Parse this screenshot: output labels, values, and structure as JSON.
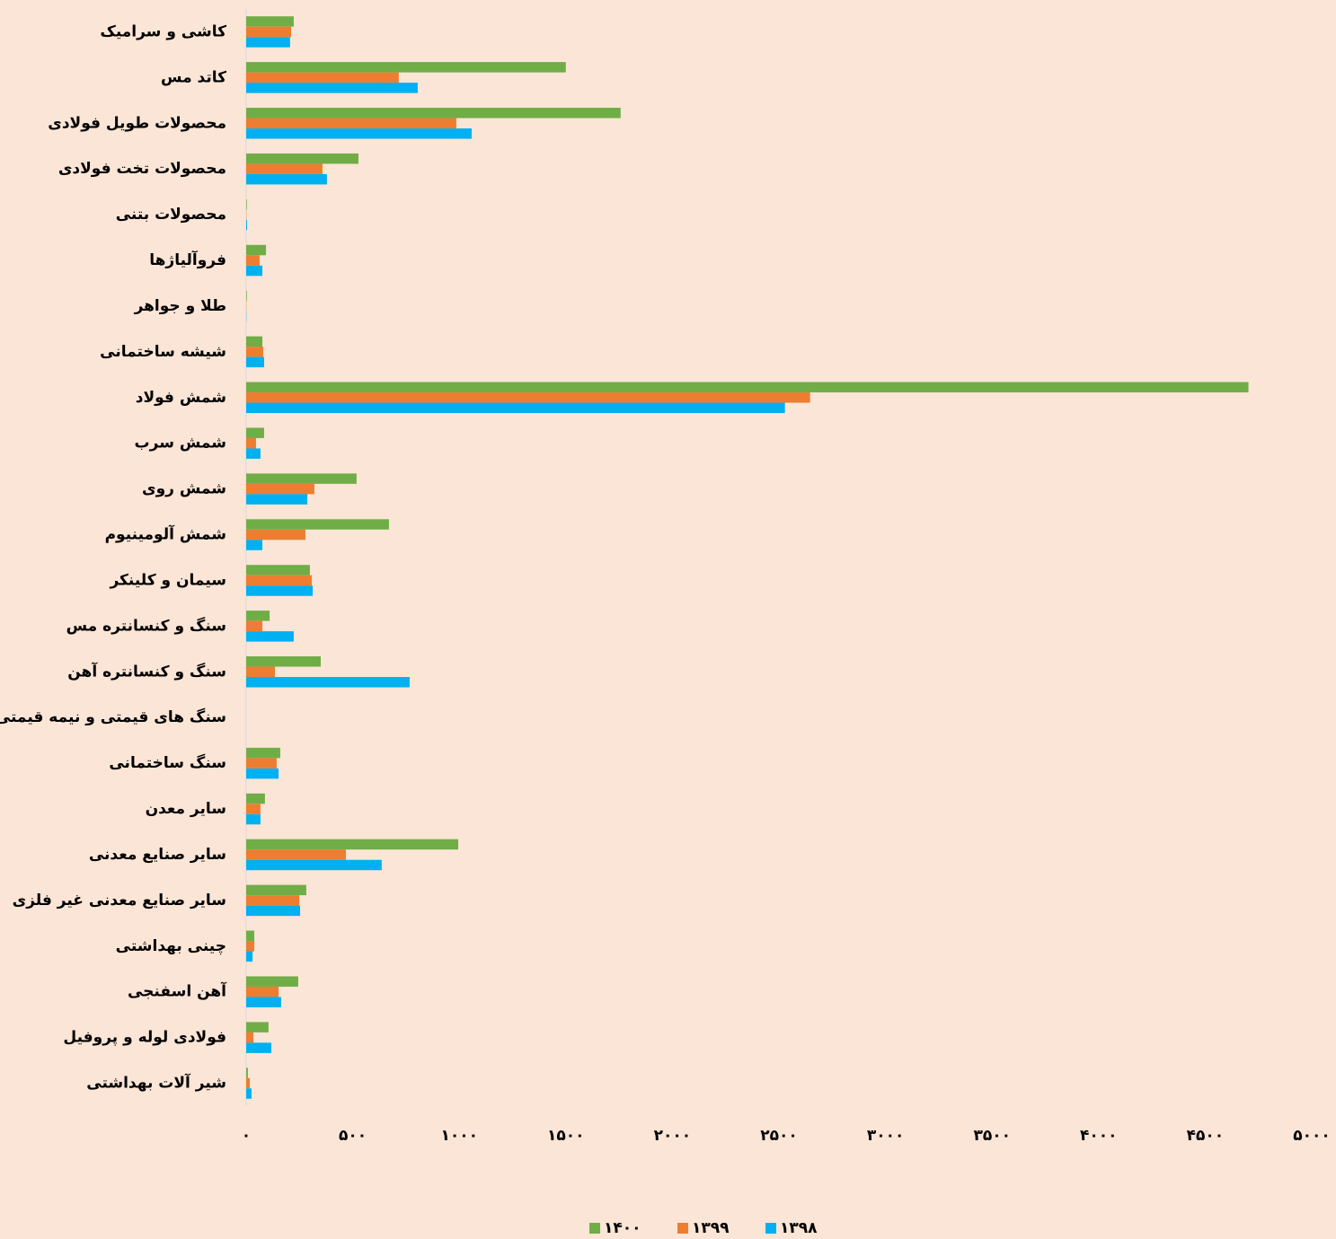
{
  "chart_data": {
    "type": "hbar",
    "categories": [
      "کاشی و سرامیک",
      "کاتد مس",
      "محصولات طویل فولادی",
      "محصولات تخت فولادی",
      "محصولات بتنی",
      "فروآلیاژها",
      "طلا و جواهر",
      "شیشه ساختمانی",
      "شمش فولاد",
      "شمش سرب",
      "شمش روی",
      "شمش آلومینیوم",
      "سیمان و کلینکر",
      "سنگ و کنسانتره مس",
      "سنگ و کنسانتره آهن",
      "سنگ های قیمتی و نیمه قیمتی",
      "سنگ ساختمانی",
      "سایر معدن",
      "سایر صنایع معدنی",
      "سایر صنایع معدنی غیر فلزی",
      "چینی بهداشتی",
      "آهن اسفنجی",
      "فولادی لوله و پروفیل",
      "شیر آلات بهداشتی"
    ],
    "series": [
      {
        "name": "۱۴۰۰",
        "color": "#70ad47",
        "values": [
          223,
          1500,
          1757,
          527,
          3,
          93,
          3,
          76,
          4703,
          84,
          518,
          670,
          299,
          110,
          350,
          0,
          160,
          88,
          995,
          282,
          38,
          244,
          105,
          8
        ]
      },
      {
        "name": "۱۳۹۹",
        "color": "#ed7d31",
        "values": [
          211,
          716,
          986,
          358,
          1,
          63,
          1,
          80,
          2646,
          46,
          320,
          278,
          308,
          76,
          135,
          0,
          143,
          67,
          468,
          249,
          38,
          152,
          34,
          17
        ]
      },
      {
        "name": "۱۳۹۸",
        "color": "#00b0f0",
        "values": [
          206,
          805,
          1058,
          379,
          4,
          76,
          1,
          84,
          2528,
          67,
          287,
          76,
          312,
          223,
          767,
          0,
          152,
          67,
          636,
          253,
          30,
          164,
          118,
          25
        ]
      }
    ],
    "xlim": [
      0,
      5000
    ],
    "xticks": [
      {
        "value": 0,
        "label": "۰"
      },
      {
        "value": 500,
        "label": "۵۰۰"
      },
      {
        "value": 1000,
        "label": "۱۰۰۰"
      },
      {
        "value": 1500,
        "label": "۱۵۰۰"
      },
      {
        "value": 2000,
        "label": "۲۰۰۰"
      },
      {
        "value": 2500,
        "label": "۲۵۰۰"
      },
      {
        "value": 3000,
        "label": "۳۰۰۰"
      },
      {
        "value": 3500,
        "label": "۳۵۰۰"
      },
      {
        "value": 4000,
        "label": "۴۰۰۰"
      },
      {
        "value": 4500,
        "label": "۴۵۰۰"
      },
      {
        "value": 5000,
        "label": "۵۰۰۰"
      }
    ],
    "legend": "bottom"
  }
}
